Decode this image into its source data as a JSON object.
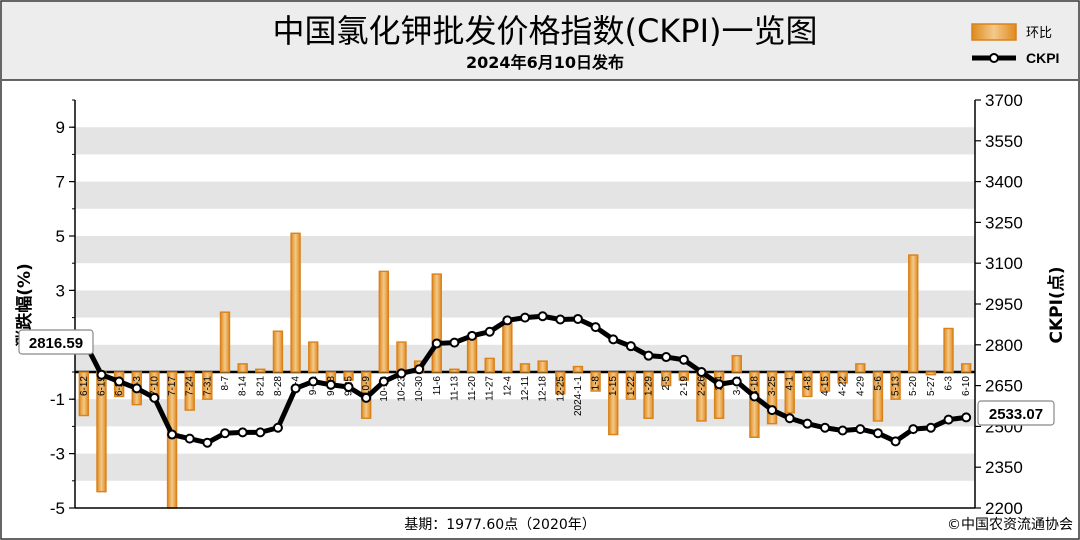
{
  "header": {
    "title": "中国氯化钾批发价格指数(CKPI)一览图",
    "subtitle": "2024年6月10日发布"
  },
  "footer": {
    "base_note": "基期：1977.60点（2020年）",
    "copyright": "©中国农资流通协会"
  },
  "legend": {
    "bar_label": "环比",
    "line_label": "CKPI"
  },
  "callouts": {
    "start_value": "2816.59",
    "end_value": "2533.07"
  },
  "colors": {
    "bar_fill_top": "#f3c98a",
    "bar_fill_bottom": "#e08a1e",
    "bar_stroke": "#d9821b",
    "line": "#000000",
    "marker_fill": "#ffffff",
    "grid_band": "#e4e4e4",
    "header_bg": "#ededed"
  },
  "chart_data": {
    "type": "bar",
    "categories": [
      "6-12",
      "6-19",
      "6-26",
      "7-3",
      "7-10",
      "7-17",
      "7-24",
      "7-31",
      "8-7",
      "8-14",
      "8-21",
      "8-28",
      "9-4",
      "9-11",
      "9-18",
      "9-25",
      "10-9",
      "10-16",
      "10-23",
      "10-30",
      "11-6",
      "11-13",
      "11-20",
      "11-27",
      "12-4",
      "12-11",
      "12-18",
      "12-25",
      "2024-1-1",
      "1-8",
      "1-15",
      "1-22",
      "1-29",
      "2-5",
      "2-19",
      "2-26",
      "3-4",
      "3-11",
      "3-18",
      "3-25",
      "4-1",
      "4-8",
      "4-15",
      "4-22",
      "4-29",
      "5-6",
      "5-13",
      "5-20",
      "5-27",
      "6-3",
      "6-10"
    ],
    "series": [
      {
        "name": "环比",
        "axis": "left",
        "values": [
          -1.6,
          -4.4,
          -0.9,
          -1.2,
          -1.0,
          -5.0,
          -1.4,
          -1.0,
          2.2,
          0.3,
          0.1,
          1.5,
          5.1,
          1.1,
          -0.4,
          -0.3,
          -1.7,
          3.7,
          1.1,
          0.4,
          3.6,
          0.1,
          1.3,
          0.5,
          1.8,
          0.3,
          0.4,
          -0.8,
          0.2,
          -0.7,
          -2.3,
          -1.0,
          -1.7,
          -0.5,
          -0.3,
          -1.8,
          -1.7,
          0.6,
          -2.4,
          -1.9,
          -1.5,
          -0.9,
          -0.7,
          -0.4,
          0.3,
          -1.8,
          -1.0,
          4.3,
          -0.1,
          1.6,
          0.3
        ]
      },
      {
        "name": "CKPI",
        "axis": "right",
        "values": [
          2816.59,
          2690,
          2665,
          2640,
          2605,
          2470,
          2455,
          2440,
          2475,
          2478,
          2478,
          2495,
          2640,
          2665,
          2653,
          2645,
          2605,
          2665,
          2695,
          2710,
          2805,
          2808,
          2833,
          2848,
          2890,
          2900,
          2905,
          2893,
          2895,
          2865,
          2820,
          2795,
          2760,
          2755,
          2745,
          2700,
          2655,
          2665,
          2610,
          2560,
          2530,
          2510,
          2495,
          2485,
          2490,
          2475,
          2445,
          2490,
          2495,
          2525,
          2533.07
        ]
      }
    ],
    "y_left": {
      "label": "涨跌幅(%)",
      "ticks": [
        9,
        7,
        5,
        3,
        1,
        -1,
        -3,
        -5
      ],
      "range": [
        -5,
        10
      ]
    },
    "y_right": {
      "label": "CKPI(点)",
      "ticks": [
        3700,
        3550,
        3400,
        3250,
        3100,
        2950,
        2800,
        2650,
        2500,
        2350,
        2200
      ],
      "range": [
        2200,
        3700
      ]
    },
    "grid": true,
    "legend_position": "top-right"
  }
}
